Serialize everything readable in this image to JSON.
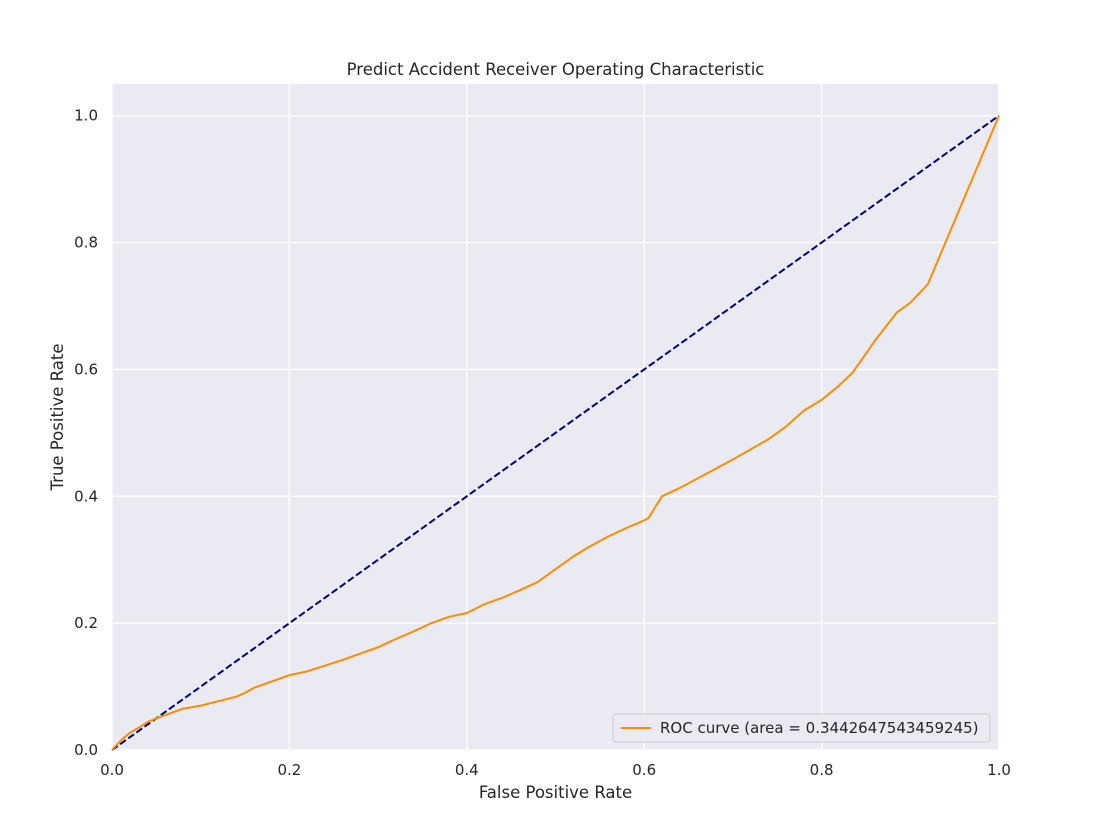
{
  "chart_data": {
    "type": "line",
    "title": "Predict Accident Receiver Operating Characteristic",
    "xlabel": "False Positive Rate",
    "ylabel": "True Positive Rate",
    "xlim": [
      0.0,
      1.0
    ],
    "ylim": [
      0.0,
      1.05
    ],
    "x_ticks": [
      "0.0",
      "0.2",
      "0.4",
      "0.6",
      "0.8",
      "1.0"
    ],
    "y_ticks": [
      "0.0",
      "0.2",
      "0.4",
      "0.6",
      "0.8",
      "1.0"
    ],
    "grid": true,
    "legend_position": "lower-right",
    "colors": {
      "plot_background": "#eaeaf2",
      "grid": "#ffffff",
      "roc": "#ff8c00",
      "diagonal": "#000080"
    },
    "series": [
      {
        "name": "ROC curve (area = 0.3442647543459245)",
        "style": "solid",
        "color": "#ff8c00",
        "x": [
          0.0,
          0.01,
          0.02,
          0.03,
          0.04,
          0.05,
          0.06,
          0.07,
          0.08,
          0.1,
          0.12,
          0.14,
          0.15,
          0.16,
          0.18,
          0.2,
          0.22,
          0.24,
          0.26,
          0.28,
          0.3,
          0.32,
          0.34,
          0.36,
          0.38,
          0.4,
          0.42,
          0.44,
          0.46,
          0.48,
          0.5,
          0.52,
          0.54,
          0.56,
          0.58,
          0.6,
          0.605,
          0.62,
          0.64,
          0.66,
          0.68,
          0.7,
          0.72,
          0.74,
          0.76,
          0.78,
          0.8,
          0.82,
          0.835,
          0.86,
          0.885,
          0.9,
          0.915,
          0.92,
          1.0
        ],
        "y": [
          0.0,
          0.015,
          0.027,
          0.035,
          0.044,
          0.05,
          0.055,
          0.06,
          0.065,
          0.07,
          0.077,
          0.084,
          0.09,
          0.098,
          0.108,
          0.118,
          0.124,
          0.133,
          0.142,
          0.152,
          0.162,
          0.175,
          0.187,
          0.2,
          0.21,
          0.216,
          0.23,
          0.24,
          0.252,
          0.265,
          0.285,
          0.305,
          0.322,
          0.337,
          0.35,
          0.362,
          0.366,
          0.4,
          0.413,
          0.428,
          0.443,
          0.458,
          0.474,
          0.49,
          0.51,
          0.535,
          0.552,
          0.575,
          0.595,
          0.645,
          0.69,
          0.705,
          0.727,
          0.735,
          1.0
        ]
      },
      {
        "name": "",
        "style": "dashed",
        "color": "#000080",
        "x": [
          0.0,
          1.0
        ],
        "y": [
          0.0,
          1.0
        ]
      }
    ]
  }
}
